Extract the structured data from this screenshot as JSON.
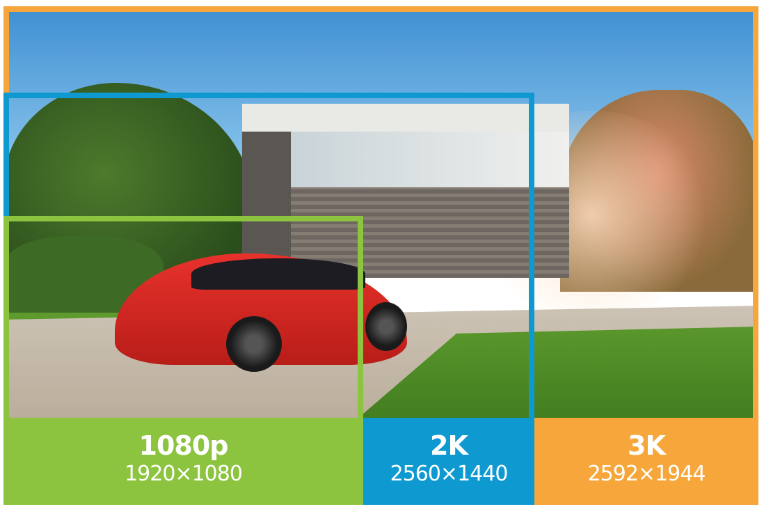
{
  "colors": {
    "1080p": "#8cc43f",
    "2k": "#0e9ad0",
    "3k": "#f6a63b"
  },
  "resolutions": [
    {
      "name": "1080p",
      "size": "1920×1080"
    },
    {
      "name": "2K",
      "size": "2560×1440"
    },
    {
      "name": "3K",
      "size": "2592×1944"
    }
  ]
}
